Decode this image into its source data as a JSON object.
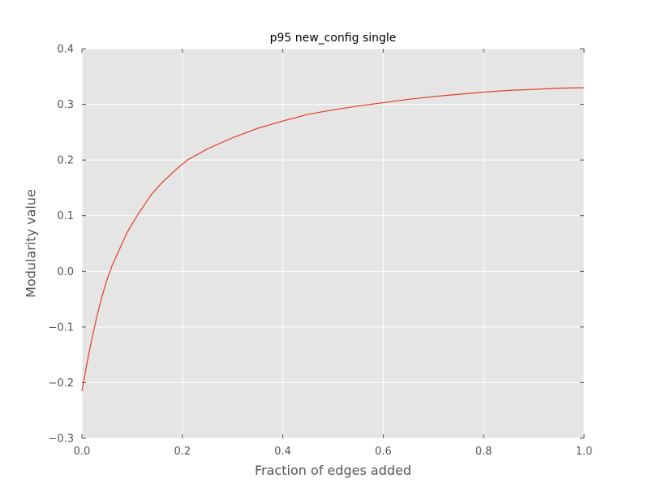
{
  "chart_data": {
    "type": "line",
    "title": "p95 new_config single",
    "xlabel": "Fraction of edges added",
    "ylabel": "Modularity value",
    "xlim": [
      0.0,
      1.0
    ],
    "ylim": [
      -0.3,
      0.4
    ],
    "x_ticks": [
      "0.0",
      "0.2",
      "0.4",
      "0.6",
      "0.8",
      "1.0"
    ],
    "y_ticks": [
      "−0.3",
      "−0.2",
      "−0.1",
      "0.0",
      "0.1",
      "0.2",
      "0.3",
      "0.4"
    ],
    "grid": true,
    "series": [
      {
        "color": "#e24a33",
        "x": [
          0.0,
          0.01,
          0.02,
          0.03,
          0.04,
          0.05,
          0.06,
          0.08,
          0.09,
          0.11,
          0.13,
          0.14,
          0.16,
          0.19,
          0.21,
          0.25,
          0.28,
          0.3,
          0.35,
          0.4,
          0.45,
          0.5,
          0.55,
          0.6,
          0.65,
          0.7,
          0.75,
          0.8,
          0.85,
          0.9,
          0.95,
          1.0
        ],
        "y": [
          -0.215,
          -0.165,
          -0.12,
          -0.08,
          -0.045,
          -0.015,
          0.01,
          0.05,
          0.07,
          0.1,
          0.127,
          0.14,
          0.16,
          0.185,
          0.2,
          0.22,
          0.232,
          0.24,
          0.257,
          0.27,
          0.282,
          0.29,
          0.297,
          0.303,
          0.309,
          0.314,
          0.318,
          0.322,
          0.325,
          0.327,
          0.329,
          0.33
        ]
      }
    ]
  }
}
